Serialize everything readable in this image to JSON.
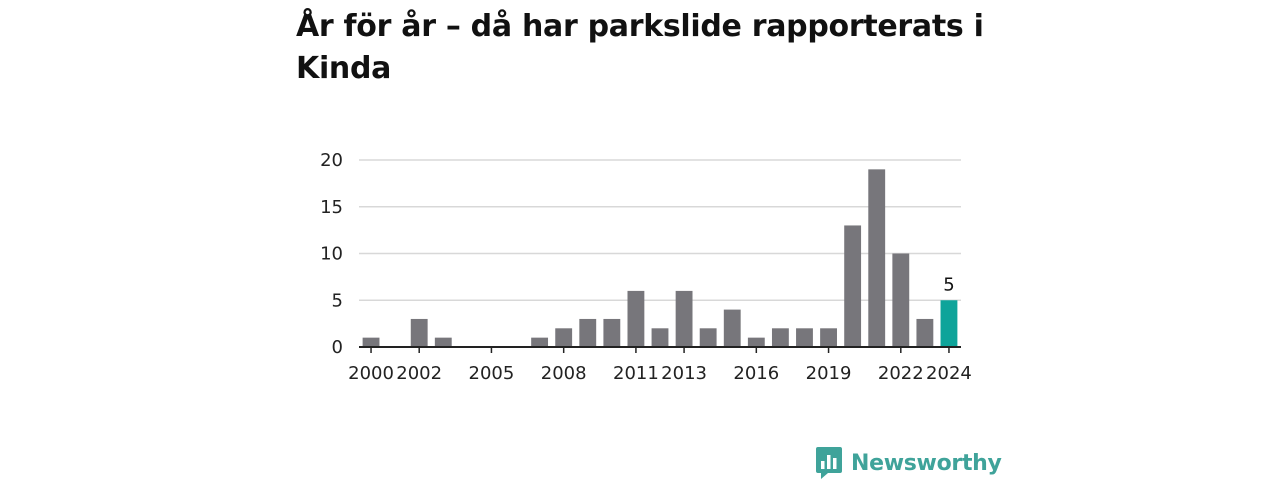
{
  "brand": {
    "name": "Newsworthy",
    "color": "#3fa39a",
    "icon": "bar-chart-speech-bubble-icon"
  },
  "colors": {
    "bar": "#77767b",
    "highlight": "#0ea49a",
    "grid": "#d8d8d8",
    "axis": "#222222"
  },
  "chart_data": {
    "type": "bar",
    "title": "År för år – då har parkslide rapporterats i Kinda",
    "xlabel": "",
    "ylabel": "",
    "x": [
      2000,
      2001,
      2002,
      2003,
      2004,
      2005,
      2006,
      2007,
      2008,
      2009,
      2010,
      2011,
      2012,
      2013,
      2014,
      2015,
      2016,
      2017,
      2018,
      2019,
      2020,
      2021,
      2022,
      2023,
      2024
    ],
    "values": [
      1,
      0,
      3,
      1,
      0,
      0,
      0,
      1,
      2,
      3,
      3,
      6,
      2,
      6,
      2,
      4,
      1,
      2,
      2,
      2,
      13,
      19,
      10,
      3,
      5
    ],
    "x_tick_labels": [
      "2000",
      "2002",
      "2005",
      "2008",
      "2011",
      "2013",
      "2016",
      "2019",
      "2022",
      "2024"
    ],
    "y_ticks": [
      0,
      5,
      10,
      15,
      20
    ],
    "ylim": [
      0,
      20
    ],
    "grid": true,
    "legend": "none",
    "highlight": {
      "x": 2024,
      "label": "5"
    }
  }
}
